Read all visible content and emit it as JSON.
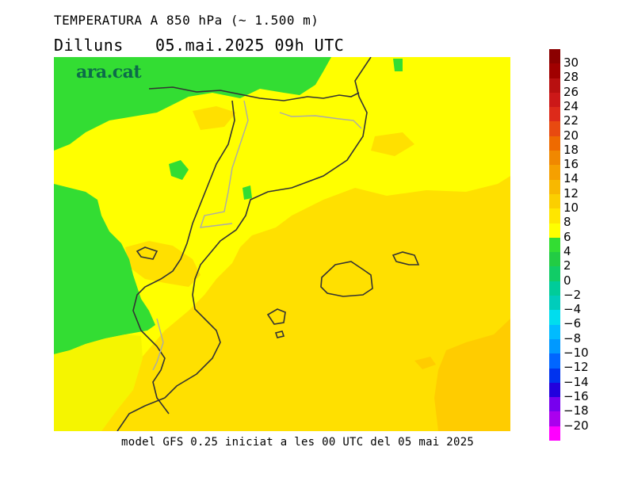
{
  "header": {
    "title": "TEMPERATURA A 850 hPa (~ 1.500 m)",
    "day": "Dilluns",
    "datetime": "05.mai.2025 09h UTC"
  },
  "logo": {
    "text": "ara.cat"
  },
  "footer": {
    "text": "model GFS 0.25 iniciat a les 00 UTC del 05 mai 2025"
  },
  "colors": {
    "green": "#33dd33",
    "yellow": "#ffff00",
    "yellow_light": "#f5f500",
    "gold": "#ffe000",
    "orange": "#ffcc00",
    "coast": "#333333",
    "border": "#aaaaaa"
  },
  "scale": {
    "labels": [
      "30",
      "28",
      "26",
      "24",
      "22",
      "20",
      "18",
      "16",
      "14",
      "12",
      "10",
      "8",
      "6",
      "4",
      "2",
      "0",
      "−2",
      "−4",
      "−6",
      "−8",
      "−10",
      "−12",
      "−14",
      "−16",
      "−18",
      "−20"
    ],
    "colors": [
      "#8b0000",
      "#a00000",
      "#b81010",
      "#cc1818",
      "#dd2a1a",
      "#e84a10",
      "#ee6a00",
      "#f08800",
      "#f5a000",
      "#f8b800",
      "#fbcf00",
      "#ffe600",
      "#ffff00",
      "#33dd33",
      "#22cc44",
      "#11cc66",
      "#00cc99",
      "#00ccbb",
      "#00ddee",
      "#00bbff",
      "#0099ff",
      "#0066ff",
      "#0033ee",
      "#2200dd",
      "#7700ee",
      "#aa00ee",
      "#ff00ff"
    ]
  }
}
